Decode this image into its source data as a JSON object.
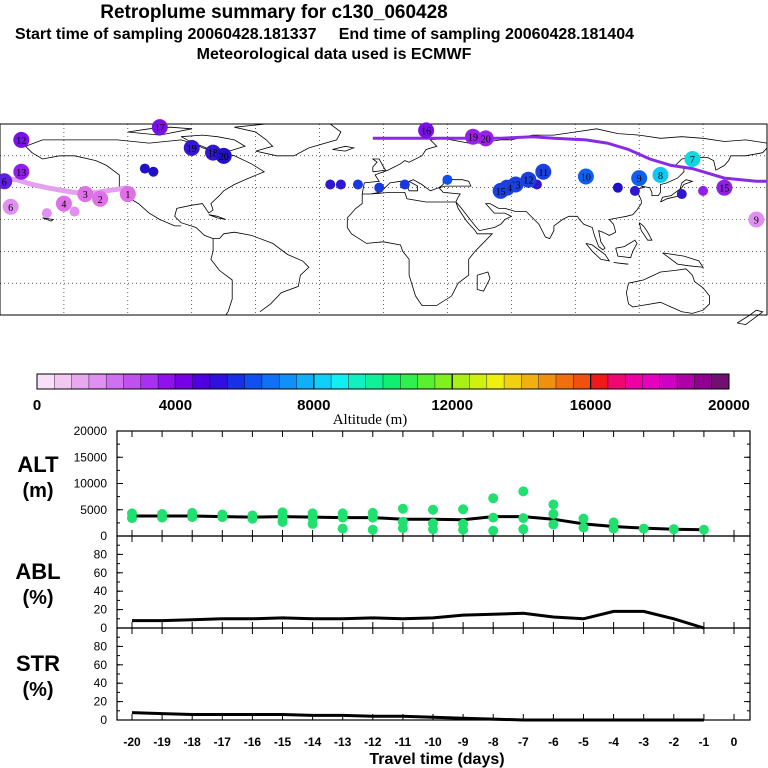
{
  "header": {
    "title": "Retroplume summary for c130_060428",
    "start_label": "Start time of sampling 20060428.181337",
    "end_label": "End time of sampling 20060428.181404",
    "met_label": "Meteorological data used is ECMWF"
  },
  "colorbar": {
    "title": "Altitude (m)",
    "tick_labels": [
      "0",
      "4000",
      "8000",
      "12000",
      "16000",
      "20000"
    ],
    "colors": [
      "#f8e0f8",
      "#f0c8f0",
      "#e8a8f0",
      "#e090f0",
      "#d070f0",
      "#c050f0",
      "#a830f0",
      "#9010f0",
      "#7800e8",
      "#5000e0",
      "#3010e0",
      "#1830e8",
      "#1050f0",
      "#1070f8",
      "#1090f8",
      "#10b0f8",
      "#10d0f8",
      "#10f0f0",
      "#10f0c0",
      "#10f098",
      "#10f070",
      "#30f050",
      "#58f030",
      "#80f020",
      "#a8f018",
      "#d0f010",
      "#f0f010",
      "#f0d010",
      "#f0b010",
      "#f09010",
      "#f07010",
      "#f05010",
      "#f01818",
      "#f00870",
      "#f000a0",
      "#e800c0",
      "#d000c0",
      "#b000a8",
      "#900090",
      "#701070"
    ]
  },
  "map": {
    "colors": {
      "land_line": "#000000",
      "plume_purple": "#8a2be2",
      "plume_pink": "#e6a0f0"
    },
    "markers": [
      {
        "label": "12",
        "color": "#7a10e8",
        "x_day": -12,
        "lon": -170,
        "lat": 70
      },
      {
        "label": "17",
        "color": "#7a10e8",
        "lon": -105,
        "lat": 78
      },
      {
        "label": "19",
        "color": "#3418d0",
        "lon": -90,
        "lat": 65
      },
      {
        "label": "18",
        "color": "#3418d0",
        "lon": -80,
        "lat": 62
      },
      {
        "label": "20",
        "color": "#2010c8",
        "lon": -75,
        "lat": 60
      },
      {
        "label": "16",
        "color": "#7a10e8",
        "lon": 20,
        "lat": 76
      },
      {
        "label": "19",
        "color": "#9a20e8",
        "lon": 42,
        "lat": 72
      },
      {
        "label": "20",
        "color": "#9a20e8",
        "lon": 48,
        "lat": 71
      },
      {
        "label": "11",
        "color": "#1a40e0",
        "lon": 75,
        "lat": 50
      },
      {
        "label": "12",
        "color": "#1a40e0",
        "lon": 68,
        "lat": 45
      },
      {
        "label": "13",
        "color": "#1a40e0",
        "lon": 62,
        "lat": 42
      },
      {
        "label": "14",
        "color": "#1a40e0",
        "lon": 58,
        "lat": 40
      },
      {
        "label": "15",
        "color": "#1a40e0",
        "lon": 55,
        "lat": 38
      },
      {
        "label": "10",
        "color": "#1060f0",
        "lon": 95,
        "lat": 47
      },
      {
        "label": "9",
        "color": "#1060f0",
        "lon": 120,
        "lat": 46
      },
      {
        "label": "8",
        "color": "#10c8f0",
        "lon": 130,
        "lat": 48
      },
      {
        "label": "7",
        "color": "#10d8e0",
        "lon": 145,
        "lat": 58
      },
      {
        "label": "6",
        "color": "#6020e0",
        "lon": -178,
        "lat": 44
      },
      {
        "label": "9",
        "color": "#e090f0",
        "lon": 175,
        "lat": 20
      },
      {
        "label": "13",
        "color": "#9020e8",
        "lon": -170,
        "lat": 50
      },
      {
        "label": "15",
        "color": "#9020e8",
        "lon": 160,
        "lat": 40
      },
      {
        "label": "3",
        "color": "#e070e8",
        "lon": -140,
        "lat": 36
      },
      {
        "label": "2",
        "color": "#e070e8",
        "lon": -133,
        "lat": 33
      },
      {
        "label": "1",
        "color": "#e070e8",
        "lon": -120,
        "lat": 36
      },
      {
        "label": "4",
        "color": "#e070e8",
        "lon": -150,
        "lat": 30
      },
      {
        "label": "6",
        "color": "#e090f0",
        "lon": -175,
        "lat": 28
      }
    ]
  },
  "chart_data": [
    {
      "type": "line",
      "panel_label": "ALT",
      "unit_label": "(m)",
      "x": [
        -20,
        -19,
        -18,
        -17,
        -16,
        -15,
        -14,
        -13,
        -12,
        -11,
        -10,
        -9,
        -8,
        -7,
        -6,
        -5,
        -4,
        -3,
        -2,
        -1
      ],
      "series": [
        {
          "name": "mean altitude",
          "values": [
            3800,
            3800,
            3800,
            3700,
            3600,
            3700,
            3600,
            3500,
            3500,
            3200,
            3200,
            3100,
            3700,
            3700,
            3200,
            2300,
            1800,
            1500,
            1300,
            1200
          ]
        },
        {
          "name": "cluster altitudes",
          "type": "scatter",
          "points": [
            [
              -20,
              4300
            ],
            [
              -20,
              3400
            ],
            [
              -19,
              4200
            ],
            [
              -19,
              3500
            ],
            [
              -18,
              4400
            ],
            [
              -18,
              3600
            ],
            [
              -17,
              4100
            ],
            [
              -17,
              3600
            ],
            [
              -16,
              3900
            ],
            [
              -16,
              3300
            ],
            [
              -15,
              4500
            ],
            [
              -15,
              3600
            ],
            [
              -15,
              2700
            ],
            [
              -14,
              4300
            ],
            [
              -14,
              3400
            ],
            [
              -14,
              2300
            ],
            [
              -13,
              4300
            ],
            [
              -13,
              3500
            ],
            [
              -13,
              1400
            ],
            [
              -12,
              4400
            ],
            [
              -12,
              3500
            ],
            [
              -12,
              1200
            ],
            [
              -11,
              5200
            ],
            [
              -11,
              2700
            ],
            [
              -11,
              1500
            ],
            [
              -10,
              5000
            ],
            [
              -10,
              2400
            ],
            [
              -10,
              1300
            ],
            [
              -9,
              5100
            ],
            [
              -9,
              2300
            ],
            [
              -9,
              1200
            ],
            [
              -8,
              7200
            ],
            [
              -8,
              3500
            ],
            [
              -8,
              1000
            ],
            [
              -7,
              8500
            ],
            [
              -7,
              3400
            ],
            [
              -7,
              1300
            ],
            [
              -6,
              6000
            ],
            [
              -6,
              4200
            ],
            [
              -6,
              2200
            ],
            [
              -5,
              3300
            ],
            [
              -5,
              1600
            ],
            [
              -4,
              2600
            ],
            [
              -4,
              1400
            ],
            [
              -3,
              1400
            ],
            [
              -2,
              1300
            ],
            [
              -1,
              1200
            ]
          ]
        }
      ],
      "ylim": [
        0,
        20000
      ],
      "yticks": [
        "0",
        "5000",
        "10000",
        "15000",
        "20000"
      ]
    },
    {
      "type": "line",
      "panel_label": "ABL",
      "unit_label": "(%)",
      "x": [
        -20,
        -19,
        -18,
        -17,
        -16,
        -15,
        -14,
        -13,
        -12,
        -11,
        -10,
        -9,
        -8,
        -7,
        -6,
        -5,
        -4,
        -3,
        -2,
        -1
      ],
      "series": [
        {
          "name": "ABL fraction",
          "values": [
            8,
            8,
            9,
            10,
            10,
            11,
            10,
            10,
            11,
            10,
            11,
            14,
            15,
            16,
            12,
            10,
            18,
            18,
            10,
            0
          ]
        }
      ],
      "ylim": [
        0,
        100
      ],
      "yticks": [
        "0",
        "20",
        "40",
        "60",
        "80"
      ]
    },
    {
      "type": "line",
      "panel_label": "STR",
      "unit_label": "(%)",
      "x": [
        -20,
        -19,
        -18,
        -17,
        -16,
        -15,
        -14,
        -13,
        -12,
        -11,
        -10,
        -9,
        -8,
        -7,
        -6,
        -5,
        -4,
        -3,
        -2,
        -1
      ],
      "series": [
        {
          "name": "stratospheric fraction",
          "values": [
            8,
            7,
            6,
            6,
            6,
            6,
            5,
            5,
            4,
            4,
            3,
            2,
            1,
            0,
            0,
            0,
            0,
            0,
            0,
            0
          ]
        }
      ],
      "ylim": [
        0,
        100
      ],
      "yticks": [
        "0",
        "20",
        "40",
        "60",
        "80"
      ],
      "xlabel": "Travel time (days)",
      "xticks": [
        "-20",
        "-19",
        "-18",
        "-17",
        "-16",
        "-15",
        "-14",
        "-13",
        "-12",
        "-11",
        "-10",
        "-9",
        "-8",
        "-7",
        "-6",
        "-5",
        "-4",
        "-3",
        "-2",
        "-1",
        "0"
      ]
    }
  ]
}
